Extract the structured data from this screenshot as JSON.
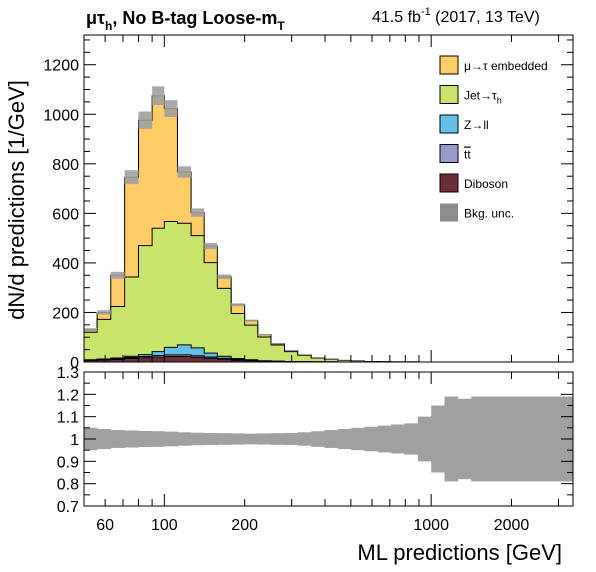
{
  "header": {
    "channel": "μτ",
    "channel_sub": "h",
    "category": ", No B-tag Loose-m",
    "category_sub": "T",
    "lumi": "41.5 fb",
    "lumi_sup": "-1",
    "conditions": " (2017, 13 TeV)"
  },
  "colors": {
    "embedded": "#ffcc66",
    "jet_tau": "#c8e46b",
    "zll": "#64c0e8",
    "ttbar": "#9999cc",
    "diboson": "#6d2e3a",
    "unc": "#a0a0a0",
    "unc_legend": "#8c8c8c"
  },
  "chart_data": [
    {
      "type": "area",
      "stacked": true,
      "binning": "log-spaced histogram bins",
      "xlabel": "ML predictions [GeV]",
      "ylabel": "dN/d predictions [1/GeV]",
      "xlim": [
        50,
        3400
      ],
      "ylim": [
        0,
        1320
      ],
      "xscale": "log",
      "x_ticks": [
        "100",
        "200",
        "1000",
        "2000"
      ],
      "y_ticks": [
        "0",
        "200",
        "400",
        "600",
        "800",
        "1000",
        "1200"
      ],
      "legend_position": "top-right",
      "legend": [
        {
          "label": "μ→τ embedded",
          "color_key": "embedded"
        },
        {
          "label": "Jet→τ",
          "sub": "h",
          "color_key": "jet_tau"
        },
        {
          "label": "Z→ll",
          "color_key": "zll"
        },
        {
          "label": "tt",
          "overline": true,
          "color_key": "ttbar"
        },
        {
          "label": "Diboson",
          "color_key": "diboson"
        },
        {
          "label": "Bkg. unc.",
          "color_key": "unc_legend"
        }
      ],
      "bin_edges": [
        50,
        56,
        63,
        71,
        80,
        90,
        100,
        112,
        126,
        141,
        158,
        178,
        200,
        224,
        251,
        282,
        316,
        355,
        398,
        447,
        501,
        562,
        631,
        708,
        794,
        891,
        1000,
        1122,
        1259,
        1413,
        1585,
        1778,
        1995,
        2239,
        2512,
        2818,
        3400
      ],
      "series": [
        {
          "name": "Diboson",
          "key": "diboson",
          "values": [
            6,
            8,
            10,
            14,
            17,
            20,
            22,
            22,
            19,
            15,
            11,
            7,
            5,
            3,
            2,
            1,
            1,
            0.5,
            0.3,
            0.2,
            0.1,
            0,
            0,
            0,
            0,
            0,
            0,
            0,
            0,
            0,
            0,
            0,
            0,
            0,
            0,
            0
          ]
        },
        {
          "name": "tt",
          "key": "ttbar",
          "values": [
            2,
            2,
            3,
            4,
            5,
            6,
            7,
            7,
            6,
            5,
            4,
            3,
            2,
            1,
            1,
            0.5,
            0.3,
            0.2,
            0.1,
            0,
            0,
            0,
            0,
            0,
            0,
            0,
            0,
            0,
            0,
            0,
            0,
            0,
            0,
            0,
            0,
            0
          ]
        },
        {
          "name": "Z→ll",
          "key": "zll",
          "values": [
            1,
            2,
            3,
            5,
            8,
            16,
            30,
            40,
            32,
            16,
            8,
            4,
            2,
            1,
            0.5,
            0.3,
            0.2,
            0.1,
            0,
            0,
            0,
            0,
            0,
            0,
            0,
            0,
            0,
            0,
            0,
            0,
            0,
            0,
            0,
            0,
            0,
            0
          ]
        },
        {
          "name": "Jet→τh",
          "key": "jet_tau",
          "values": [
            111,
            160,
            208,
            320,
            440,
            498,
            508,
            491,
            453,
            365,
            274,
            182,
            140,
            96,
            65,
            40,
            25,
            15,
            10,
            6,
            4,
            2,
            1,
            0.5,
            0.3,
            0.2,
            0.1,
            0,
            0,
            0,
            0,
            0,
            0,
            0,
            0,
            0
          ]
        },
        {
          "name": "μ→τ embedded",
          "key": "embedded",
          "values": [
            10,
            28,
            126,
            403,
            506,
            535,
            456,
            207,
            93,
            67,
            47,
            35,
            18,
            9,
            5,
            3,
            2,
            1,
            0.6,
            0.3,
            0.2,
            0.1,
            0,
            0,
            0,
            0,
            0,
            0,
            0,
            0,
            0,
            0,
            0,
            0,
            0,
            0
          ]
        }
      ]
    },
    {
      "type": "area",
      "description_key": "ratio",
      "xlim": [
        50,
        3400
      ],
      "ylim": [
        0.7,
        1.3
      ],
      "xscale": "log",
      "y_ticks": [
        "0.7",
        "0.8",
        "0.9",
        "1",
        "1.1",
        "1.2",
        "1.3"
      ],
      "x_ticks": [
        "100",
        "200",
        "1000",
        "2000"
      ],
      "bin_edges": [
        50,
        56,
        63,
        71,
        80,
        90,
        100,
        112,
        126,
        141,
        158,
        178,
        200,
        224,
        251,
        282,
        316,
        355,
        398,
        447,
        501,
        562,
        631,
        708,
        794,
        891,
        1000,
        1122,
        1259,
        1413,
        1585,
        1778,
        1995,
        2239,
        2512,
        2818,
        3400
      ],
      "unc_half_width": [
        0.05,
        0.045,
        0.04,
        0.038,
        0.036,
        0.035,
        0.033,
        0.03,
        0.028,
        0.027,
        0.026,
        0.025,
        0.024,
        0.025,
        0.026,
        0.027,
        0.03,
        0.035,
        0.04,
        0.045,
        0.05,
        0.055,
        0.06,
        0.065,
        0.07,
        0.1,
        0.15,
        0.19,
        0.18,
        0.19,
        0.19,
        0.19,
        0.19,
        0.19,
        0.19,
        0.19
      ]
    }
  ]
}
